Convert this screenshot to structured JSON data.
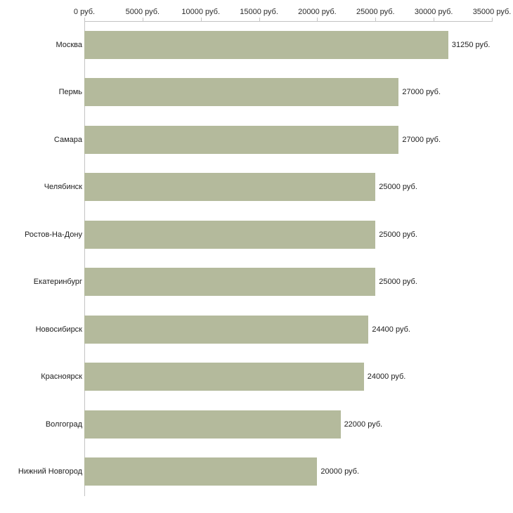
{
  "chart_data": {
    "type": "bar",
    "orientation": "horizontal",
    "title": "",
    "xlabel": "",
    "ylabel": "",
    "xlim": [
      0,
      35000
    ],
    "grid": false,
    "legend": false,
    "background_color": "#ffffff",
    "bar_color": "#b4ba9c",
    "axis_color": "#c3c3c3",
    "text_color": "#1d1d1d",
    "x_tick_values": [
      0,
      5000,
      10000,
      15000,
      20000,
      25000,
      30000,
      35000
    ],
    "x_tick_labels": [
      "0 руб.",
      "5000 руб.",
      "10000 руб.",
      "15000 руб.",
      "20000 руб.",
      "25000 руб.",
      "30000 руб.",
      "35000 руб."
    ],
    "categories": [
      "Москва",
      "Пермь",
      "Самара",
      "Челябинск",
      "Ростов-На-Дону",
      "Екатеринбург",
      "Новосибирск",
      "Красноярск",
      "Волгоград",
      "Нижний Новгород"
    ],
    "values": [
      31250,
      27000,
      27000,
      25000,
      25000,
      25000,
      24400,
      24000,
      22000,
      20000
    ],
    "value_labels": [
      "31250 руб.",
      "27000 руб.",
      "27000 руб.",
      "25000 руб.",
      "25000 руб.",
      "25000 руб.",
      "24400 руб.",
      "24000 руб.",
      "22000 руб.",
      "20000 руб."
    ]
  }
}
